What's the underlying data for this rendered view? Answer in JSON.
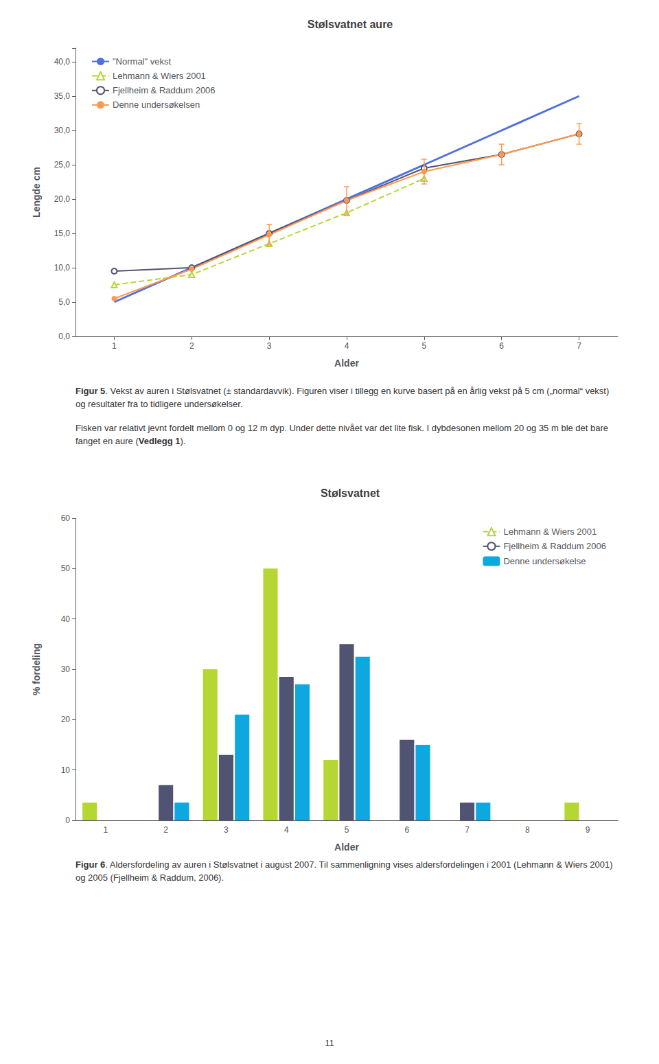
{
  "chart_data": [
    {
      "type": "line",
      "title": "Stølsvatnet aure",
      "xlabel": "Alder",
      "ylabel": "Lengde cm",
      "xlim": [
        0.5,
        7.5
      ],
      "xticks": [
        1,
        2,
        3,
        4,
        5,
        6,
        7
      ],
      "ylim": [
        0.0,
        42.0
      ],
      "yticks": [
        {
          "value": 0,
          "label": "0,0"
        },
        {
          "value": 5,
          "label": "5,0"
        },
        {
          "value": 10,
          "label": "10,0"
        },
        {
          "value": 15,
          "label": "15,0"
        },
        {
          "value": 20,
          "label": "20,0"
        },
        {
          "value": 25,
          "label": "25,0"
        },
        {
          "value": 30,
          "label": "30,0"
        },
        {
          "value": 35,
          "label": "35,0"
        },
        {
          "value": 40,
          "label": "40,0"
        }
      ],
      "grid": false,
      "legend": "upper left",
      "series": [
        {
          "name": "\"Normal\" vekst",
          "x": [
            1,
            2,
            3,
            4,
            5,
            6,
            7
          ],
          "values": [
            5.0,
            10.0,
            15.0,
            20.0,
            25.0,
            30.0,
            35.0
          ],
          "marker": "none",
          "line_style": "solid"
        },
        {
          "name": "Lehmann & Wiers 2001",
          "x": [
            1,
            2,
            3,
            4,
            5
          ],
          "values": [
            7.5,
            9.0,
            13.5,
            18.0,
            23.0
          ],
          "marker": "open_triangle",
          "line_style": "dashed"
        },
        {
          "name": "Fjellheim & Raddum 2006",
          "x": [
            1,
            2,
            3,
            4,
            5,
            6,
            7
          ],
          "values": [
            9.5,
            10.0,
            15.0,
            19.8,
            24.5,
            26.5,
            29.5
          ],
          "marker": "open_circle",
          "line_style": "solid"
        },
        {
          "name": "Denne undersøkelsen",
          "x": [
            1,
            2,
            3,
            4,
            5,
            6,
            7
          ],
          "values": [
            5.5,
            9.8,
            14.8,
            19.8,
            24.0,
            26.5,
            29.5
          ],
          "yerr": [
            0.0,
            0.0,
            1.5,
            2.0,
            1.8,
            1.5,
            1.5
          ],
          "marker": "circle",
          "line_style": "solid"
        }
      ],
      "annotations": [
        [
          {
            "text": "Figur 5",
            "bold": true
          },
          {
            "text": ". Vekst av auren i Stølsvatnet (± standardavvik). Figuren viser i tillegg en kurve basert på en årlig vekst på 5 cm („normal“ vekst) og resultater fra to tidligere undersøkelser."
          }
        ],
        [
          {
            "text": "Fisken var relativt jevnt fordelt mellom 0 og 12 m dyp. Under dette nivået var det lite fisk. I dybdesonen mellom 20 og 35 m ble det bare fanget en aure ("
          },
          {
            "text": "Vedlegg 1",
            "bold": true
          },
          {
            "text": ")."
          }
        ]
      ]
    },
    {
      "type": "bar",
      "title": "Stølsvatnet",
      "xlabel": "Alder",
      "ylabel": "% fordeling",
      "categories": [
        1,
        2,
        3,
        4,
        5,
        6,
        7,
        8,
        9
      ],
      "ylim": [
        0,
        60
      ],
      "yticks": [
        0,
        10,
        20,
        30,
        40,
        50,
        60
      ],
      "grid": false,
      "legend": "upper right",
      "series": [
        {
          "name": "Lehmann & Wiers 2001",
          "values": [
            3.5,
            0,
            30,
            50,
            12,
            0,
            0,
            0,
            3.5
          ]
        },
        {
          "name": "Fjellheim & Raddum 2006",
          "values": [
            0,
            7,
            13,
            28.5,
            35,
            16,
            3.5,
            0,
            0
          ]
        },
        {
          "name": "Denne undersøkelse",
          "values": [
            0,
            3.5,
            21,
            27,
            32.5,
            15,
            3.5,
            0,
            0
          ]
        }
      ],
      "annotations": [
        [
          {
            "text": "Figur 6",
            "bold": true
          },
          {
            "text": ". Aldersfordeling av auren i Stølsvatnet i august 2007. Til sammenligning vises aldersfordelingen i 2001 (Lehmann & Wiers 2001) og 2005 (Fjellheim & Raddum, 2006)."
          }
        ],
        [
          {
            "text": "11"
          }
        ]
      ]
    }
  ]
}
